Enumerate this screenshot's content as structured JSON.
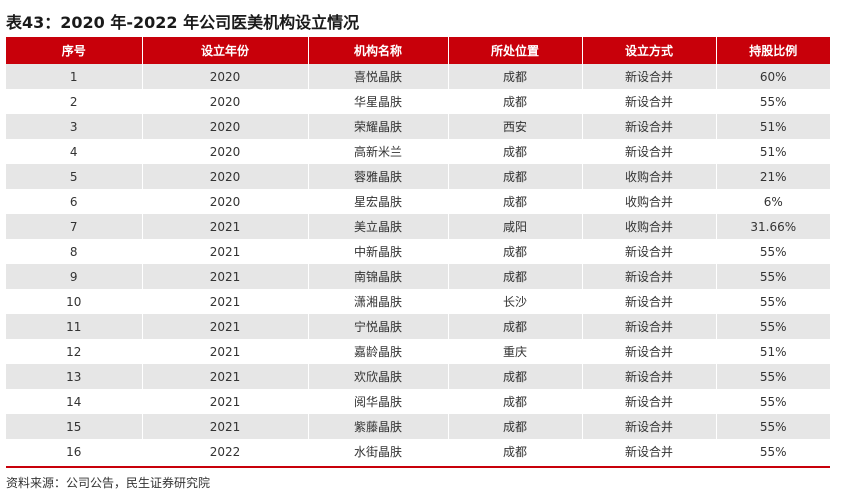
{
  "title": "表43：2020 年-2022 年公司医美机构设立情况",
  "table": {
    "headers": [
      "序号",
      "设立年份",
      "机构名称",
      "所处位置",
      "设立方式",
      "持股比例"
    ],
    "rows": [
      [
        "1",
        "2020",
        "喜悦晶肤",
        "成都",
        "新设合并",
        "60%"
      ],
      [
        "2",
        "2020",
        "华星晶肤",
        "成都",
        "新设合并",
        "55%"
      ],
      [
        "3",
        "2020",
        "荣耀晶肤",
        "西安",
        "新设合并",
        "51%"
      ],
      [
        "4",
        "2020",
        "高新米兰",
        "成都",
        "新设合并",
        "51%"
      ],
      [
        "5",
        "2020",
        "蓉雅晶肤",
        "成都",
        "收购合并",
        "21%"
      ],
      [
        "6",
        "2020",
        "星宏晶肤",
        "成都",
        "收购合并",
        "6%"
      ],
      [
        "7",
        "2021",
        "美立晶肤",
        "咸阳",
        "收购合并",
        "31.66%"
      ],
      [
        "8",
        "2021",
        "中新晶肤",
        "成都",
        "新设合并",
        "55%"
      ],
      [
        "9",
        "2021",
        "南锦晶肤",
        "成都",
        "新设合并",
        "55%"
      ],
      [
        "10",
        "2021",
        "潇湘晶肤",
        "长沙",
        "新设合并",
        "55%"
      ],
      [
        "11",
        "2021",
        "宁悦晶肤",
        "成都",
        "新设合并",
        "55%"
      ],
      [
        "12",
        "2021",
        "嘉龄晶肤",
        "重庆",
        "新设合并",
        "51%"
      ],
      [
        "13",
        "2021",
        "欢欣晶肤",
        "成都",
        "新设合并",
        "55%"
      ],
      [
        "14",
        "2021",
        "阅华晶肤",
        "成都",
        "新设合并",
        "55%"
      ],
      [
        "15",
        "2021",
        "紫藤晶肤",
        "成都",
        "新设合并",
        "55%"
      ],
      [
        "16",
        "2022",
        "水街晶肤",
        "成都",
        "新设合并",
        "55%"
      ]
    ]
  },
  "source": "资料来源：公司公告，民生证券研究院",
  "colors": {
    "header_bg": "#c8000a",
    "stripe_bg": "#e6e6e6",
    "rule": "#c8000a"
  }
}
